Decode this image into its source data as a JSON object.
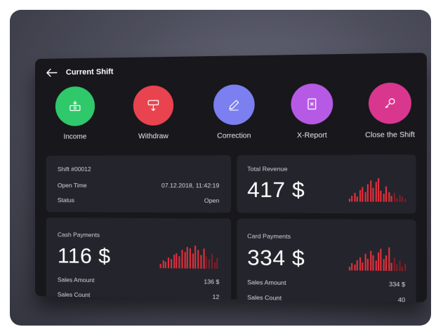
{
  "header": {
    "title": "Current Shift"
  },
  "actions": [
    {
      "label": "Income",
      "color": "#2fc86a",
      "icon": "cash-in-icon"
    },
    {
      "label": "Withdraw",
      "color": "#e8434f",
      "icon": "cash-out-icon"
    },
    {
      "label": "Correction",
      "color": "#7b7ff0",
      "icon": "pencil-icon"
    },
    {
      "label": "X-Report",
      "color": "#b65ae6",
      "icon": "report-icon"
    },
    {
      "label": "Close the Shift",
      "color": "#d9368e",
      "icon": "key-icon"
    }
  ],
  "shift": {
    "title": "Shift #00012",
    "open_time_label": "Open Time",
    "open_time_value": "07.12.2018, 11:42:19",
    "status_label": "Status",
    "status_value": "Open"
  },
  "total_revenue": {
    "title": "Total Revenue",
    "amount": "417 $",
    "sparkline": [
      3,
      6,
      9,
      5,
      12,
      15,
      10,
      18,
      22,
      14,
      20,
      24,
      11,
      8,
      16,
      10,
      6,
      9,
      4,
      7,
      5,
      3
    ]
  },
  "cash_payments": {
    "title": "Cash Payments",
    "amount": "116 $",
    "sales_amount_label": "Sales Amount",
    "sales_amount_value": "136 $",
    "sales_count_label": "Sales Count",
    "sales_count_value": "12",
    "sparkline": [
      6,
      10,
      8,
      14,
      12,
      18,
      20,
      16,
      24,
      22,
      28,
      26,
      20,
      30,
      24,
      18,
      26,
      16,
      12,
      20,
      8,
      14
    ]
  },
  "card_payments": {
    "title": "Card Payments",
    "amount": "334 $",
    "sales_amount_label": "Sales Amount",
    "sales_amount_value": "334 $",
    "sales_count_label": "Sales Count",
    "sales_count_value": "40",
    "sparkline": [
      4,
      9,
      7,
      12,
      16,
      10,
      20,
      14,
      24,
      18,
      12,
      22,
      26,
      14,
      18,
      28,
      10,
      16,
      8,
      12,
      5,
      9
    ]
  },
  "colors": {
    "bar": "#e0303c",
    "bar_dim": "#7c1f27"
  }
}
